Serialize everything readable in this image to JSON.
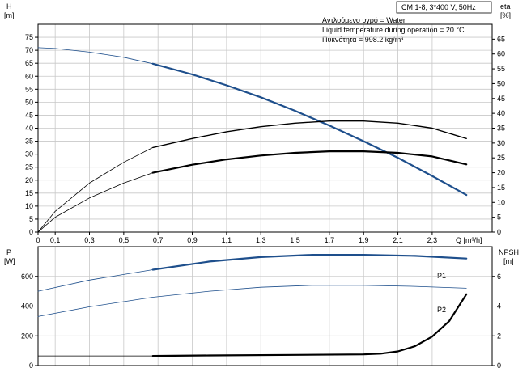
{
  "chart_data": [
    {
      "type": "line",
      "title": "CM 1-8, 3*400 V, 50Hz",
      "annotations": [
        "Αντλούμενο υγρό = Water",
        "Liquid temperature during operation = 20 °C",
        "Πυκνότητα = 998.2 kg/m³"
      ],
      "xlabel": "Q [m³/h]",
      "ylabel": "H",
      "ylabel_unit": "[m]",
      "y2label": "eta",
      "y2label_unit": "[%]",
      "xlim": [
        0,
        2.65
      ],
      "ylim": [
        0,
        80
      ],
      "y2lim": [
        0,
        70
      ],
      "x_ticks": [
        "0",
        "0,1",
        "0,3",
        "0,5",
        "0,7",
        "0,9",
        "1,1",
        "1,3",
        "1,5",
        "1,7",
        "1,9",
        "2,1",
        "2,3"
      ],
      "y_ticks": [
        "0",
        "5",
        "10",
        "15",
        "20",
        "25",
        "30",
        "35",
        "40",
        "45",
        "50",
        "55",
        "60",
        "65",
        "70",
        "75"
      ],
      "y2_ticks": [
        "0",
        "5",
        "10",
        "15",
        "20",
        "25",
        "30",
        "35",
        "40",
        "45",
        "50",
        "55",
        "60",
        "65"
      ],
      "grid": true,
      "series": [
        {
          "axis": "y",
          "style": "thin",
          "color": "#1e4f8c",
          "x": [
            0,
            0.1,
            0.3,
            0.5,
            0.67
          ],
          "values": [
            71.0,
            70.7,
            69.3,
            67.3,
            64.8
          ]
        },
        {
          "axis": "y",
          "style": "bold",
          "color": "#1e4f8c",
          "x": [
            0.67,
            0.9,
            1.1,
            1.3,
            1.5,
            1.7,
            1.9,
            2.1,
            2.3,
            2.5
          ],
          "values": [
            64.8,
            60.7,
            56.5,
            51.9,
            46.7,
            41.0,
            35.0,
            28.6,
            21.6,
            14.3
          ]
        },
        {
          "axis": "y2",
          "style": "thin",
          "color": "#000000",
          "x": [
            0,
            0.1,
            0.3,
            0.5,
            0.67
          ],
          "values": [
            0,
            7.0,
            16.5,
            23.5,
            28.5
          ]
        },
        {
          "axis": "y2",
          "style": "medium",
          "color": "#000000",
          "x": [
            0.67,
            0.9,
            1.1,
            1.3,
            1.5,
            1.7,
            1.9,
            2.1,
            2.3,
            2.5
          ],
          "values": [
            28.5,
            31.5,
            33.8,
            35.5,
            36.7,
            37.4,
            37.4,
            36.7,
            35.0,
            31.5
          ]
        },
        {
          "axis": "y2",
          "style": "thin",
          "color": "#000000",
          "x": [
            0,
            0.1,
            0.3,
            0.5,
            0.67
          ],
          "values": [
            0,
            5.0,
            11.5,
            16.5,
            20.0
          ]
        },
        {
          "axis": "y2",
          "style": "bold",
          "color": "#000000",
          "x": [
            0.67,
            0.9,
            1.1,
            1.3,
            1.5,
            1.7,
            1.9,
            2.1,
            2.3,
            2.5
          ],
          "values": [
            20.0,
            22.7,
            24.5,
            25.8,
            26.7,
            27.2,
            27.2,
            26.7,
            25.5,
            22.8
          ]
        }
      ]
    },
    {
      "type": "line",
      "xlim": [
        0,
        2.65
      ],
      "ylabel": "P",
      "ylabel_unit": "[W]",
      "y2label": "NPSH",
      "y2label_unit": "[m]",
      "ylim": [
        0,
        800
      ],
      "y2lim": [
        0,
        8
      ],
      "y_ticks": [
        "0",
        "200",
        "400",
        "600"
      ],
      "y2_ticks": [
        "0",
        "2",
        "4",
        "6"
      ],
      "grid": true,
      "series": [
        {
          "name": "P1",
          "axis": "y",
          "style": "thin",
          "color": "#1e4f8c",
          "x": [
            0,
            0.3,
            0.67
          ],
          "values": [
            500,
            575,
            645
          ]
        },
        {
          "name": "P1",
          "axis": "y",
          "style": "bold",
          "color": "#1e4f8c",
          "x": [
            0.67,
            1.0,
            1.3,
            1.6,
            1.9,
            2.2,
            2.5
          ],
          "values": [
            645,
            700,
            730,
            745,
            745,
            738,
            720
          ]
        },
        {
          "name": "P2",
          "axis": "y",
          "style": "thin",
          "color": "#1e4f8c",
          "x": [
            0,
            0.3,
            0.67,
            1.0,
            1.3,
            1.6,
            1.9,
            2.2,
            2.5
          ],
          "values": [
            330,
            395,
            460,
            500,
            527,
            540,
            540,
            533,
            520
          ]
        },
        {
          "axis": "y2",
          "style": "thin",
          "color": "#000000",
          "x": [
            0,
            0.67
          ],
          "values": [
            0.65,
            0.65
          ]
        },
        {
          "axis": "y2",
          "style": "bold",
          "color": "#000000",
          "x": [
            0.67,
            1.0,
            1.5,
            1.9,
            2.0,
            2.1,
            2.2,
            2.3,
            2.4,
            2.5
          ],
          "values": [
            0.65,
            0.68,
            0.72,
            0.75,
            0.8,
            0.95,
            1.3,
            1.95,
            3.0,
            4.8
          ]
        }
      ]
    }
  ]
}
